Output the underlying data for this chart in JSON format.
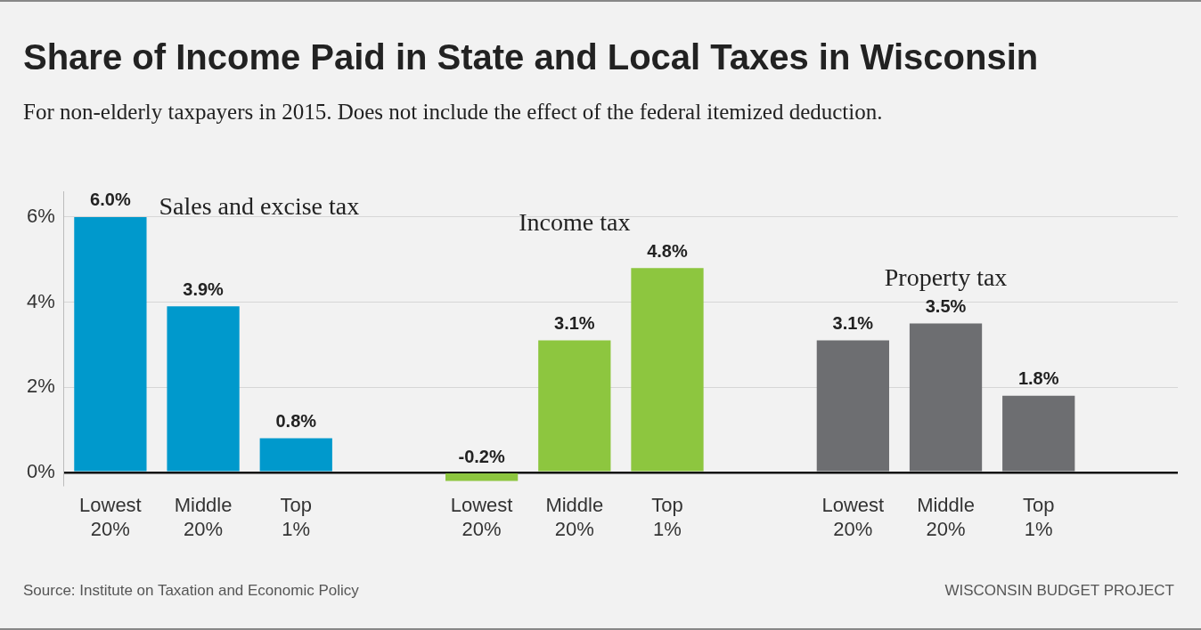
{
  "chart_data": {
    "type": "bar",
    "title": "Share of Income Paid in State and Local Taxes in Wisconsin",
    "subtitle": "For non-elderly taxpayers in 2015. Does not include the effect of the federal itemized deduction.",
    "categories": [
      "Lowest 20%",
      "Middle 20%",
      "Top 1%",
      null,
      "Lowest 20%",
      "Middle 20%",
      "Top 1%",
      null,
      "Lowest 20%",
      "Middle 20%",
      "Top 1%",
      null
    ],
    "series": [
      {
        "name": "Sales and excise tax",
        "color": "#0099cc",
        "values": [
          6.0,
          3.9,
          0.8,
          null,
          null,
          null,
          null,
          null,
          null,
          null,
          null,
          null
        ],
        "value_labels": [
          "6.0%",
          "3.9%",
          "0.8%",
          null,
          null,
          null,
          null,
          null,
          null,
          null,
          null,
          null
        ]
      },
      {
        "name": "Income tax",
        "color": "#8dc63f",
        "values": [
          null,
          null,
          null,
          null,
          -0.2,
          3.1,
          4.8,
          null,
          null,
          null,
          null,
          null
        ],
        "value_labels": [
          null,
          null,
          null,
          null,
          "-0.2%",
          "3.1%",
          "4.8%",
          null,
          null,
          null,
          null,
          null
        ]
      },
      {
        "name": "Property tax",
        "color": "#6d6e71",
        "values": [
          null,
          null,
          null,
          null,
          null,
          null,
          null,
          null,
          3.1,
          3.5,
          1.8,
          null
        ],
        "value_labels": [
          null,
          null,
          null,
          null,
          null,
          null,
          null,
          null,
          "3.1%",
          "3.5%",
          "1.8%",
          null
        ]
      }
    ],
    "ylim": [
      -0.3,
      6.6
    ],
    "yticks": [
      {
        "value": 0,
        "label": "0%"
      },
      {
        "value": 2,
        "label": "2%"
      },
      {
        "value": 4,
        "label": "4%"
      },
      {
        "value": 6,
        "label": "6%"
      }
    ],
    "grid": "y",
    "annotations": [
      "Source: Institute on Taxation and Economic Policy",
      "WISCONSIN BUDGET PROJECT"
    ]
  }
}
